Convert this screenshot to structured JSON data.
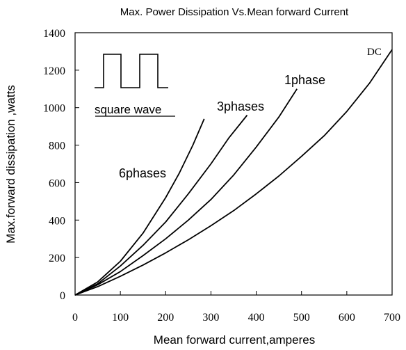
{
  "chart_data": {
    "type": "line",
    "title": "Max. Power Dissipation Vs.Mean forward Current",
    "xlabel": "Mean forward current,amperes",
    "ylabel": "Max.forward dissipation ,watts",
    "xlim": [
      0,
      700
    ],
    "ylim": [
      0,
      1400
    ],
    "xticks": [
      "0",
      "100",
      "200",
      "300",
      "400",
      "500",
      "600",
      "700"
    ],
    "yticks": [
      "0",
      "200",
      "400",
      "600",
      "800",
      "1000",
      "1200",
      "1400"
    ],
    "grid": false,
    "inset_label": "square wave",
    "series": [
      {
        "name": "6phases",
        "x": [
          0,
          50,
          100,
          150,
          200,
          230,
          260,
          285
        ],
        "y": [
          0,
          70,
          180,
          330,
          520,
          650,
          800,
          940
        ]
      },
      {
        "name": "3phases",
        "x": [
          0,
          50,
          100,
          150,
          200,
          250,
          300,
          340,
          380
        ],
        "y": [
          0,
          60,
          155,
          265,
          390,
          540,
          700,
          840,
          960
        ]
      },
      {
        "name": "1phase",
        "x": [
          0,
          50,
          100,
          150,
          200,
          250,
          300,
          350,
          400,
          450,
          490
        ],
        "y": [
          0,
          55,
          125,
          210,
          300,
          400,
          510,
          640,
          790,
          950,
          1100
        ]
      },
      {
        "name": "DC",
        "x": [
          0,
          50,
          100,
          150,
          200,
          250,
          300,
          350,
          400,
          450,
          500,
          550,
          600,
          650,
          700
        ],
        "y": [
          0,
          45,
          100,
          160,
          225,
          295,
          370,
          450,
          540,
          635,
          740,
          850,
          980,
          1130,
          1310
        ]
      }
    ]
  }
}
